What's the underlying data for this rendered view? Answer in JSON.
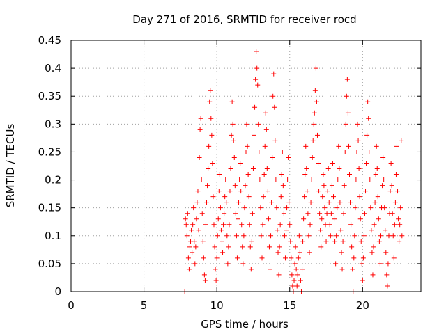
{
  "chart_data": {
    "type": "scatter",
    "title": "Day 271 of 2016, SRMTID for receiver rocd",
    "xlabel": "GPS time / hours",
    "ylabel": "SRMTID / TECUs",
    "xlim": [
      0,
      24
    ],
    "ylim": [
      0,
      0.45
    ],
    "xticks": [
      {
        "value": 0,
        "label": "0"
      },
      {
        "value": 5,
        "label": "5"
      },
      {
        "value": 10,
        "label": "10"
      },
      {
        "value": 15,
        "label": "15"
      },
      {
        "value": 20,
        "label": "20"
      }
    ],
    "yticks": [
      {
        "value": 0,
        "label": "0"
      },
      {
        "value": 0.05,
        "label": "0.05"
      },
      {
        "value": 0.1,
        "label": "0.1"
      },
      {
        "value": 0.15,
        "label": "0.15"
      },
      {
        "value": 0.2,
        "label": "0.2"
      },
      {
        "value": 0.25,
        "label": "0.25"
      },
      {
        "value": 0.3,
        "label": "0.3"
      },
      {
        "value": 0.35,
        "label": "0.35"
      },
      {
        "value": 0.4,
        "label": "0.4"
      },
      {
        "value": 0.45,
        "label": "0.45"
      }
    ],
    "grid": true,
    "marker": "+",
    "color": "#ff0000",
    "x_range_of_points": [
      7.8,
      22.7
    ],
    "series": [
      {
        "name": "SRMTID",
        "points": [
          [
            7.8,
            0.0
          ],
          [
            7.85,
            0.13
          ],
          [
            7.9,
            0.12
          ],
          [
            7.95,
            0.1
          ],
          [
            8.0,
            0.14
          ],
          [
            8.05,
            0.06
          ],
          [
            8.1,
            0.04
          ],
          [
            8.15,
            0.08
          ],
          [
            8.2,
            0.09
          ],
          [
            8.25,
            0.11
          ],
          [
            8.3,
            0.07
          ],
          [
            8.35,
            0.12
          ],
          [
            8.4,
            0.15
          ],
          [
            8.45,
            0.09
          ],
          [
            8.5,
            0.05
          ],
          [
            8.55,
            0.08
          ],
          [
            8.6,
            0.13
          ],
          [
            8.65,
            0.16
          ],
          [
            8.7,
            0.18
          ],
          [
            8.75,
            0.11
          ],
          [
            8.8,
            0.24
          ],
          [
            8.85,
            0.29
          ],
          [
            8.9,
            0.31
          ],
          [
            8.95,
            0.2
          ],
          [
            9.0,
            0.14
          ],
          [
            9.05,
            0.09
          ],
          [
            9.1,
            0.06
          ],
          [
            9.15,
            0.03
          ],
          [
            9.2,
            0.02
          ],
          [
            9.25,
            0.12
          ],
          [
            9.3,
            0.16
          ],
          [
            9.35,
            0.19
          ],
          [
            9.4,
            0.22
          ],
          [
            9.45,
            0.26
          ],
          [
            9.5,
            0.34
          ],
          [
            9.55,
            0.36
          ],
          [
            9.6,
            0.31
          ],
          [
            9.65,
            0.28
          ],
          [
            9.7,
            0.23
          ],
          [
            9.75,
            0.17
          ],
          [
            9.8,
            0.12
          ],
          [
            9.85,
            0.08
          ],
          [
            9.9,
            0.04
          ],
          [
            9.95,
            0.02
          ],
          [
            10.0,
            0.06
          ],
          [
            10.05,
            0.1
          ],
          [
            10.1,
            0.13
          ],
          [
            10.15,
            0.18
          ],
          [
            10.2,
            0.21
          ],
          [
            10.25,
            0.15
          ],
          [
            10.3,
            0.11
          ],
          [
            10.35,
            0.09
          ],
          [
            10.4,
            0.07
          ],
          [
            10.45,
            0.12
          ],
          [
            10.5,
            0.14
          ],
          [
            10.55,
            0.17
          ],
          [
            10.6,
            0.2
          ],
          [
            10.65,
            0.16
          ],
          [
            10.7,
            0.1
          ],
          [
            10.75,
            0.05
          ],
          [
            10.8,
            0.08
          ],
          [
            10.85,
            0.12
          ],
          [
            10.9,
            0.18
          ],
          [
            10.95,
            0.22
          ],
          [
            11.0,
            0.28
          ],
          [
            11.05,
            0.34
          ],
          [
            11.1,
            0.3
          ],
          [
            11.15,
            0.27
          ],
          [
            11.2,
            0.24
          ],
          [
            11.25,
            0.19
          ],
          [
            11.3,
            0.14
          ],
          [
            11.35,
            0.1
          ],
          [
            11.4,
            0.06
          ],
          [
            11.45,
            0.13
          ],
          [
            11.5,
            0.16
          ],
          [
            11.55,
            0.2
          ],
          [
            11.6,
            0.23
          ],
          [
            11.65,
            0.18
          ],
          [
            11.7,
            0.12
          ],
          [
            11.75,
            0.08
          ],
          [
            11.8,
            0.05
          ],
          [
            11.85,
            0.1
          ],
          [
            11.9,
            0.15
          ],
          [
            11.95,
            0.19
          ],
          [
            12.0,
            0.25
          ],
          [
            12.05,
            0.3
          ],
          [
            12.1,
            0.26
          ],
          [
            12.15,
            0.21
          ],
          [
            12.2,
            0.17
          ],
          [
            12.25,
            0.12
          ],
          [
            12.3,
            0.08
          ],
          [
            12.35,
            0.04
          ],
          [
            12.4,
            0.09
          ],
          [
            12.45,
            0.14
          ],
          [
            12.5,
            0.22
          ],
          [
            12.55,
            0.28
          ],
          [
            12.6,
            0.33
          ],
          [
            12.65,
            0.38
          ],
          [
            12.7,
            0.43
          ],
          [
            12.75,
            0.4
          ],
          [
            12.8,
            0.37
          ],
          [
            12.85,
            0.3
          ],
          [
            12.9,
            0.25
          ],
          [
            12.95,
            0.2
          ],
          [
            13.0,
            0.15
          ],
          [
            13.05,
            0.1
          ],
          [
            13.1,
            0.06
          ],
          [
            13.15,
            0.12
          ],
          [
            13.2,
            0.17
          ],
          [
            13.25,
            0.21
          ],
          [
            13.3,
            0.26
          ],
          [
            13.35,
            0.32
          ],
          [
            13.4,
            0.29
          ],
          [
            13.45,
            0.22
          ],
          [
            13.5,
            0.18
          ],
          [
            13.55,
            0.13
          ],
          [
            13.6,
            0.08
          ],
          [
            13.65,
            0.04
          ],
          [
            13.7,
            0.1
          ],
          [
            13.75,
            0.16
          ],
          [
            13.8,
            0.24
          ],
          [
            13.85,
            0.35
          ],
          [
            13.9,
            0.39
          ],
          [
            13.95,
            0.33
          ],
          [
            14.0,
            0.27
          ],
          [
            14.05,
            0.2
          ],
          [
            14.1,
            0.15
          ],
          [
            14.15,
            0.11
          ],
          [
            14.2,
            0.07
          ],
          [
            14.25,
            0.03
          ],
          [
            14.3,
            0.08
          ],
          [
            14.35,
            0.12
          ],
          [
            14.4,
            0.17
          ],
          [
            14.45,
            0.21
          ],
          [
            14.5,
            0.25
          ],
          [
            14.55,
            0.19
          ],
          [
            14.6,
            0.14
          ],
          [
            14.65,
            0.1
          ],
          [
            14.7,
            0.06
          ],
          [
            14.75,
            0.11
          ],
          [
            14.8,
            0.15
          ],
          [
            14.85,
            0.2
          ],
          [
            14.9,
            0.24
          ],
          [
            14.95,
            0.16
          ],
          [
            15.0,
            0.12
          ],
          [
            15.05,
            0.09
          ],
          [
            15.1,
            0.06
          ],
          [
            15.15,
            0.03
          ],
          [
            15.2,
            0.01
          ],
          [
            15.25,
            0.0
          ],
          [
            15.3,
            0.02
          ],
          [
            15.35,
            0.05
          ],
          [
            15.4,
            0.08
          ],
          [
            15.45,
            0.04
          ],
          [
            15.5,
            0.01
          ],
          [
            15.55,
            0.03
          ],
          [
            15.6,
            0.06
          ],
          [
            15.65,
            0.1
          ],
          [
            15.7,
            0.07
          ],
          [
            15.75,
            0.02
          ],
          [
            15.8,
            0.0
          ],
          [
            15.85,
            0.04
          ],
          [
            15.9,
            0.09
          ],
          [
            15.95,
            0.13
          ],
          [
            16.0,
            0.17
          ],
          [
            16.05,
            0.21
          ],
          [
            16.1,
            0.26
          ],
          [
            16.15,
            0.22
          ],
          [
            16.2,
            0.18
          ],
          [
            16.25,
            0.14
          ],
          [
            16.3,
            0.1
          ],
          [
            16.35,
            0.07
          ],
          [
            16.4,
            0.12
          ],
          [
            16.45,
            0.16
          ],
          [
            16.5,
            0.2
          ],
          [
            16.55,
            0.24
          ],
          [
            16.6,
            0.27
          ],
          [
            16.65,
            0.3
          ],
          [
            16.7,
            0.32
          ],
          [
            16.75,
            0.36
          ],
          [
            16.8,
            0.4
          ],
          [
            16.85,
            0.34
          ],
          [
            16.9,
            0.28
          ],
          [
            16.95,
            0.23
          ],
          [
            17.0,
            0.18
          ],
          [
            17.05,
            0.14
          ],
          [
            17.1,
            0.11
          ],
          [
            17.15,
            0.08
          ],
          [
            17.2,
            0.13
          ],
          [
            17.25,
            0.17
          ],
          [
            17.3,
            0.21
          ],
          [
            17.35,
            0.19
          ],
          [
            17.4,
            0.15
          ],
          [
            17.45,
            0.12
          ],
          [
            17.5,
            0.09
          ],
          [
            17.55,
            0.14
          ],
          [
            17.6,
            0.18
          ],
          [
            17.65,
            0.22
          ],
          [
            17.7,
            0.16
          ],
          [
            17.75,
            0.12
          ],
          [
            17.8,
            0.1
          ],
          [
            17.85,
            0.14
          ],
          [
            17.9,
            0.19
          ],
          [
            17.95,
            0.23
          ],
          [
            18.0,
            0.17
          ],
          [
            18.05,
            0.13
          ],
          [
            18.1,
            0.09
          ],
          [
            18.15,
            0.05
          ],
          [
            18.2,
            0.1
          ],
          [
            18.25,
            0.15
          ],
          [
            18.3,
            0.2
          ],
          [
            18.35,
            0.26
          ],
          [
            18.4,
            0.22
          ],
          [
            18.45,
            0.16
          ],
          [
            18.5,
            0.11
          ],
          [
            18.55,
            0.07
          ],
          [
            18.6,
            0.04
          ],
          [
            18.65,
            0.09
          ],
          [
            18.7,
            0.14
          ],
          [
            18.75,
            0.19
          ],
          [
            18.8,
            0.25
          ],
          [
            18.85,
            0.3
          ],
          [
            18.9,
            0.35
          ],
          [
            18.95,
            0.38
          ],
          [
            19.0,
            0.32
          ],
          [
            19.05,
            0.26
          ],
          [
            19.1,
            0.21
          ],
          [
            19.15,
            0.16
          ],
          [
            19.2,
            0.12
          ],
          [
            19.25,
            0.08
          ],
          [
            19.3,
            0.04
          ],
          [
            19.35,
            0.0
          ],
          [
            19.4,
            0.06
          ],
          [
            19.45,
            0.1
          ],
          [
            19.5,
            0.15
          ],
          [
            19.55,
            0.2
          ],
          [
            19.6,
            0.25
          ],
          [
            19.65,
            0.3
          ],
          [
            19.7,
            0.27
          ],
          [
            19.75,
            0.22
          ],
          [
            19.8,
            0.17
          ],
          [
            19.85,
            0.13
          ],
          [
            19.9,
            0.09
          ],
          [
            19.95,
            0.05
          ],
          [
            20.0,
            0.02
          ],
          [
            20.05,
            0.06
          ],
          [
            20.1,
            0.1
          ],
          [
            20.15,
            0.14
          ],
          [
            20.2,
            0.18
          ],
          [
            20.25,
            0.23
          ],
          [
            20.3,
            0.28
          ],
          [
            20.35,
            0.34
          ],
          [
            20.4,
            0.31
          ],
          [
            20.45,
            0.25
          ],
          [
            20.5,
            0.2
          ],
          [
            20.55,
            0.15
          ],
          [
            20.6,
            0.11
          ],
          [
            20.65,
            0.07
          ],
          [
            20.7,
            0.03
          ],
          [
            20.75,
            0.08
          ],
          [
            20.8,
            0.12
          ],
          [
            20.85,
            0.16
          ],
          [
            20.9,
            0.21
          ],
          [
            20.95,
            0.26
          ],
          [
            21.0,
            0.22
          ],
          [
            21.05,
            0.17
          ],
          [
            21.1,
            0.13
          ],
          [
            21.15,
            0.09
          ],
          [
            21.2,
            0.05
          ],
          [
            21.25,
            0.1
          ],
          [
            21.3,
            0.15
          ],
          [
            21.35,
            0.19
          ],
          [
            21.4,
            0.24
          ],
          [
            21.45,
            0.2
          ],
          [
            21.5,
            0.15
          ],
          [
            21.55,
            0.11
          ],
          [
            21.6,
            0.07
          ],
          [
            21.65,
            0.03
          ],
          [
            21.7,
            0.01
          ],
          [
            21.75,
            0.05
          ],
          [
            21.8,
            0.1
          ],
          [
            21.85,
            0.14
          ],
          [
            21.9,
            0.18
          ],
          [
            21.95,
            0.23
          ],
          [
            22.0,
            0.19
          ],
          [
            22.05,
            0.14
          ],
          [
            22.1,
            0.1
          ],
          [
            22.15,
            0.06
          ],
          [
            22.2,
            0.12
          ],
          [
            22.25,
            0.16
          ],
          [
            22.3,
            0.21
          ],
          [
            22.35,
            0.26
          ],
          [
            22.4,
            0.18
          ],
          [
            22.45,
            0.13
          ],
          [
            22.5,
            0.09
          ],
          [
            22.55,
            0.12
          ],
          [
            22.6,
            0.15
          ],
          [
            22.65,
            0.27
          ],
          [
            22.7,
            0.1
          ]
        ]
      }
    ]
  }
}
